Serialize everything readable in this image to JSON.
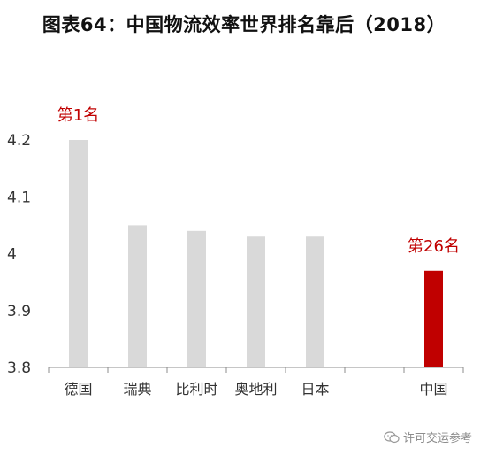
{
  "chart_data": {
    "type": "bar",
    "title": "图表64：中国物流效率世界排名靠后（2018）",
    "categories": [
      "德国",
      "瑞典",
      "比利时",
      "奥地利",
      "日本",
      "",
      "中国"
    ],
    "values": [
      4.2,
      4.05,
      4.04,
      4.03,
      4.03,
      null,
      3.97
    ],
    "ylim": [
      3.8,
      4.2
    ],
    "yticks": [
      "3.8",
      "3.9",
      "4",
      "4.1",
      "4.2"
    ],
    "annotations": [
      {
        "category": "德国",
        "text": "第1名"
      },
      {
        "category": "中国",
        "text": "第26名"
      }
    ],
    "colors": {
      "default_bar": "#d9d9d9",
      "highlight_bar": "#c00000",
      "annotation": "#c00000",
      "axis": "#8c8c8c",
      "tick_text": "#333333"
    },
    "highlight_category": "中国",
    "grid": false
  },
  "watermark": {
    "text": "许可交运参考",
    "icon": "wechat-icon"
  }
}
